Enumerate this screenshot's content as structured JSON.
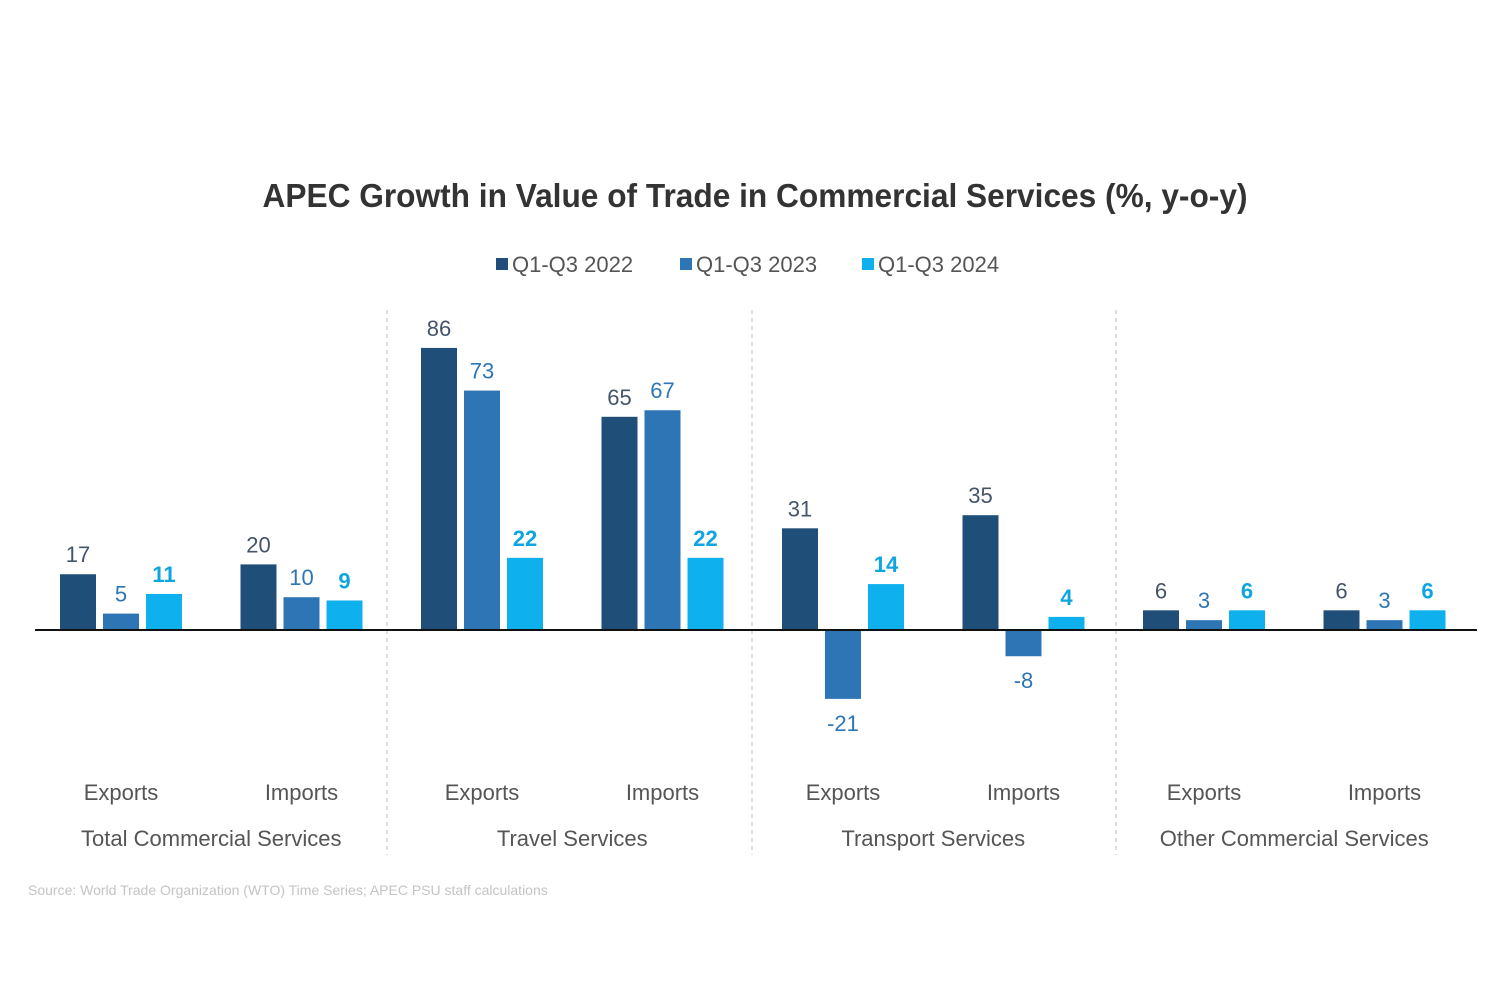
{
  "chart_data": {
    "type": "bar",
    "title": "APEC Growth in Value of Trade in Commercial Services (%, y-o-y)",
    "xlabel": "",
    "ylabel": "",
    "ylim": [
      -30,
      90
    ],
    "grid": false,
    "legend_position": "top-center",
    "groups": [
      {
        "name": "Total Commercial Services",
        "categories": [
          "Exports",
          "Imports"
        ]
      },
      {
        "name": "Travel Services",
        "categories": [
          "Exports",
          "Imports"
        ]
      },
      {
        "name": "Transport Services",
        "categories": [
          "Exports",
          "Imports"
        ]
      },
      {
        "name": "Other Commercial Services",
        "categories": [
          "Exports",
          "Imports"
        ]
      }
    ],
    "categories": [
      "Total Commercial Services - Exports",
      "Total Commercial Services - Imports",
      "Travel Services - Exports",
      "Travel Services - Imports",
      "Transport Services - Exports",
      "Transport Services - Imports",
      "Other Commercial Services - Exports",
      "Other Commercial Services - Imports"
    ],
    "series": [
      {
        "name": "Q1-Q3 2022",
        "color": "#1f4e79",
        "label_color": "#44546a",
        "label_bold": false,
        "values": [
          17,
          20,
          86,
          65,
          31,
          35,
          6,
          6
        ]
      },
      {
        "name": "Q1-Q3 2023",
        "color": "#2e75b6",
        "label_color": "#2e75b6",
        "label_bold": false,
        "values": [
          5,
          10,
          73,
          67,
          -21,
          -8,
          3,
          3
        ]
      },
      {
        "name": "Q1-Q3 2024",
        "color": "#0fb0ee",
        "label_color": "#0fa5e0",
        "label_bold": true,
        "values": [
          11,
          9,
          22,
          22,
          14,
          4,
          6,
          6
        ]
      }
    ],
    "source": "Source: World Trade Organization (WTO) Time Series; APEC PSU staff calculations"
  }
}
